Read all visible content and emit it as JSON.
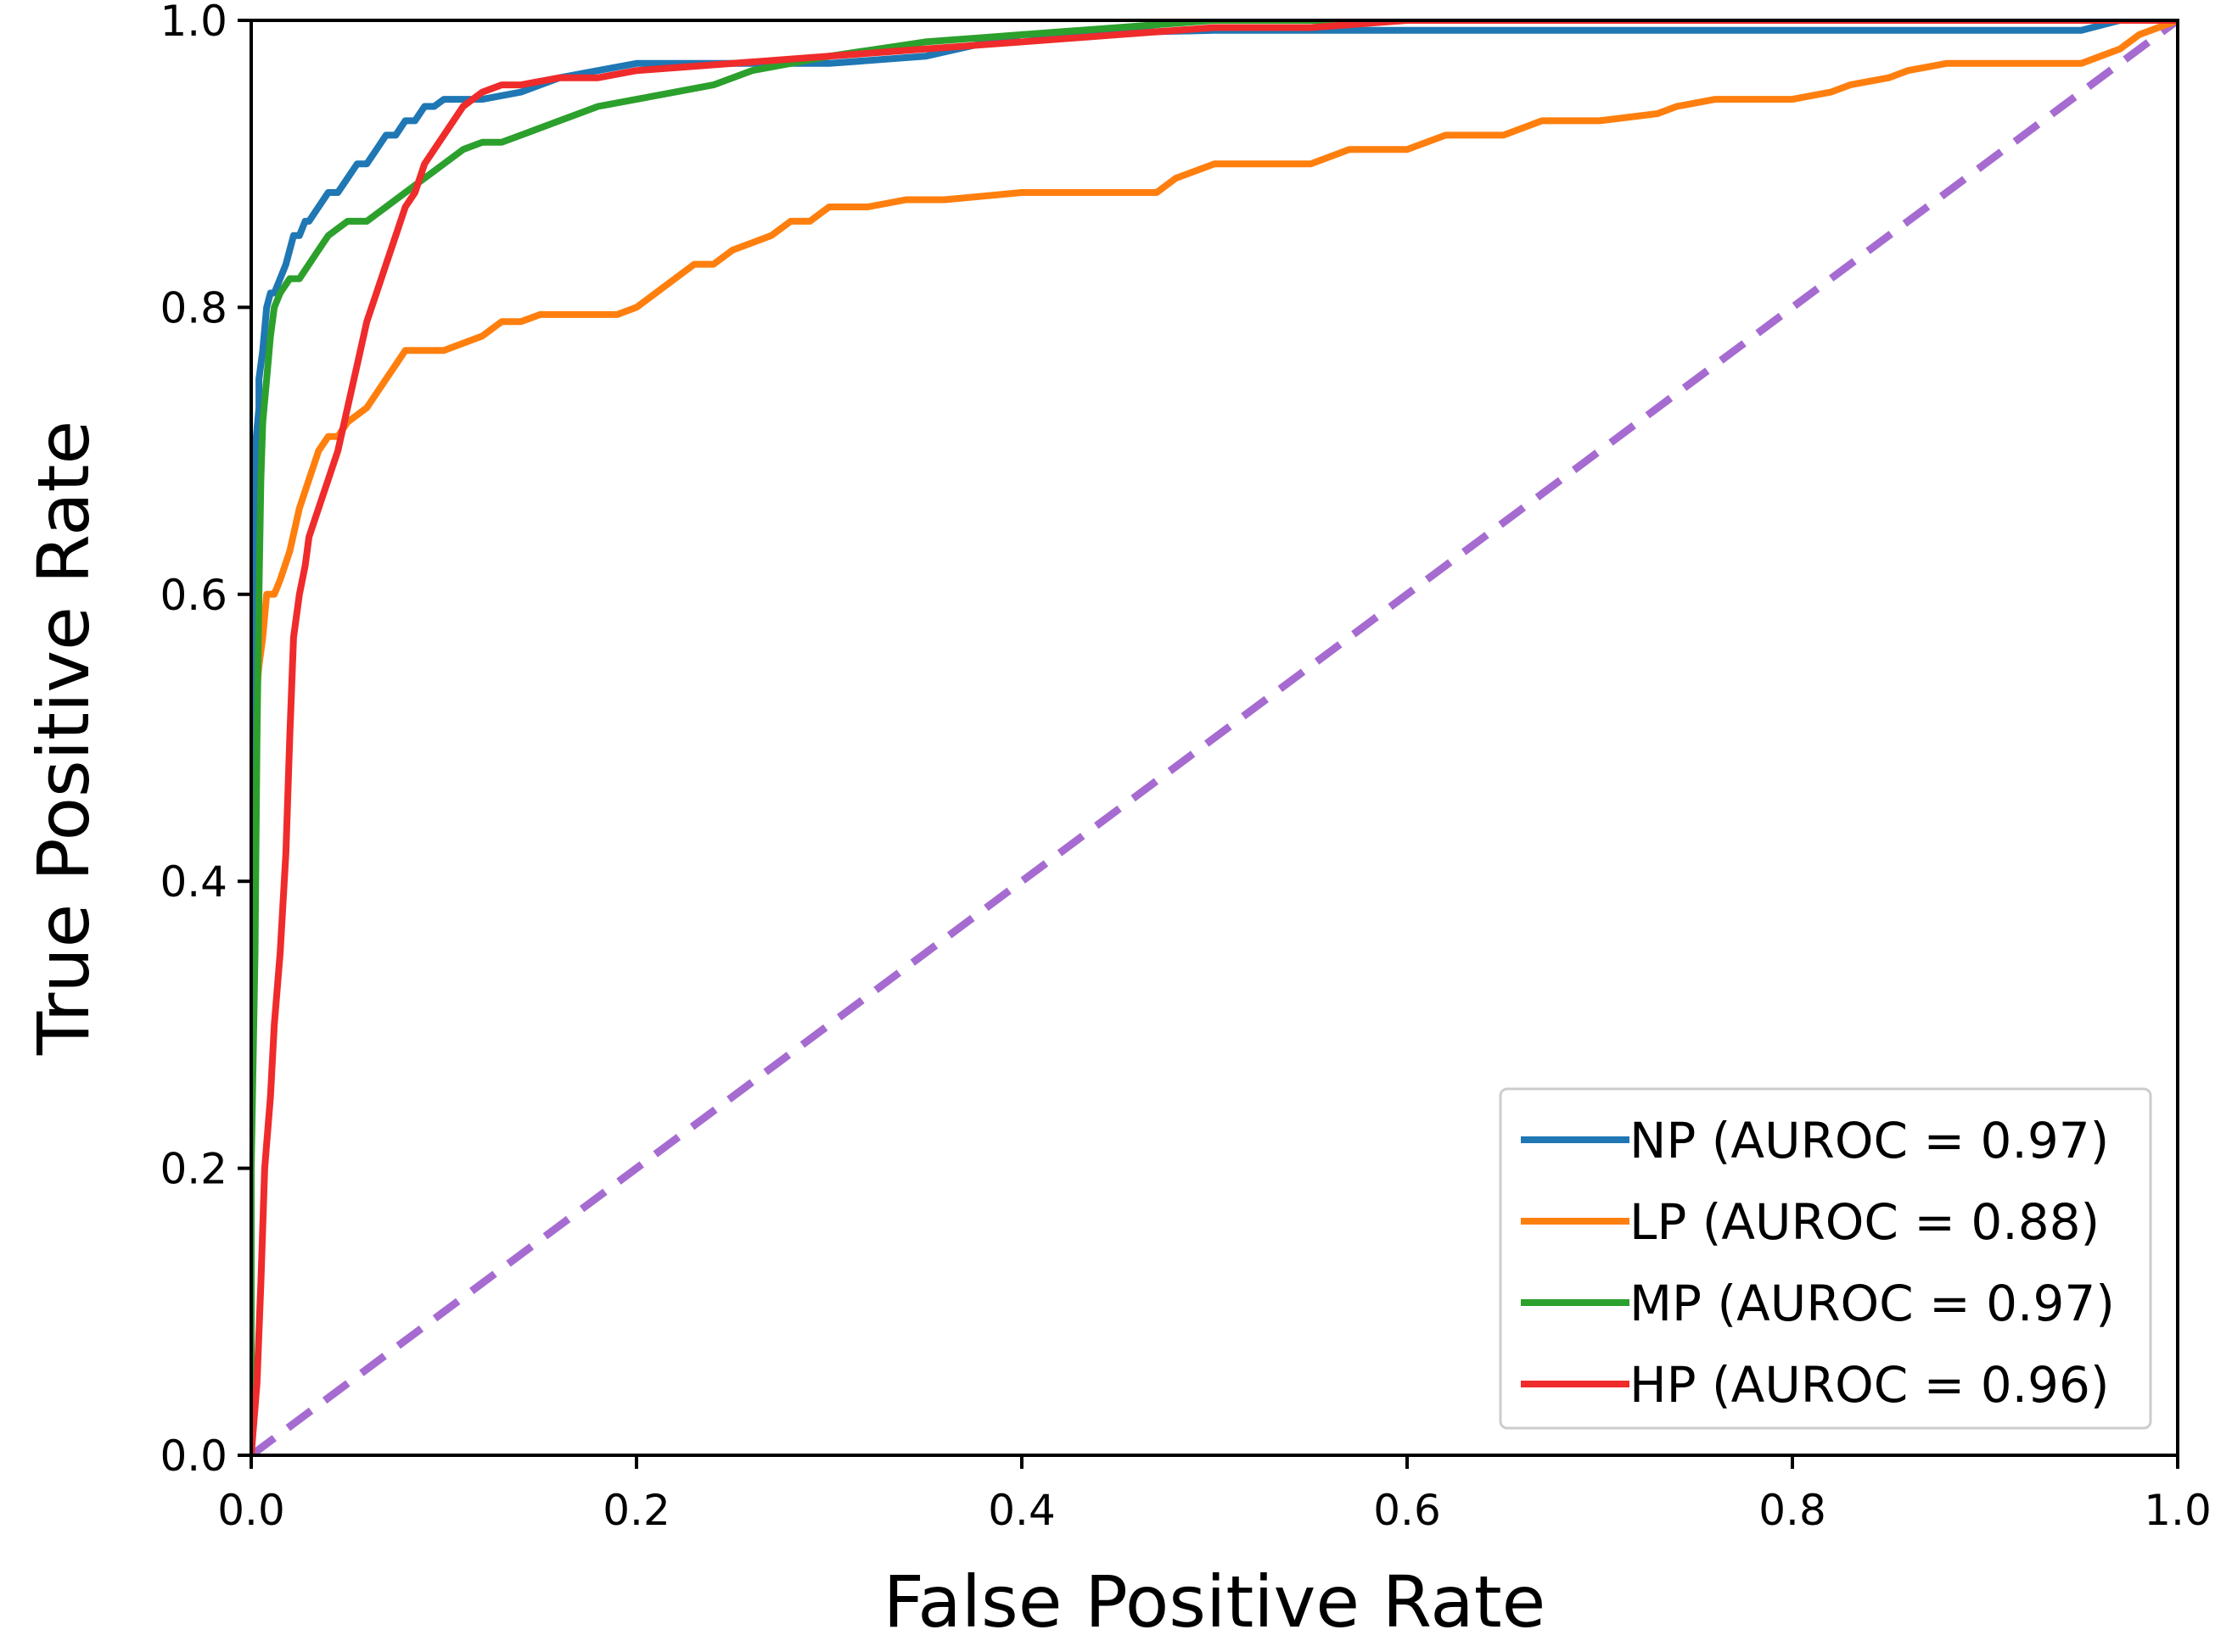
{
  "chart_data": {
    "type": "line",
    "title": "",
    "xlabel": "False Positive Rate",
    "ylabel": "True Positive Rate",
    "xlim": [
      0.0,
      1.0
    ],
    "ylim": [
      0.0,
      1.0
    ],
    "xticks": [
      "0.0",
      "0.2",
      "0.4",
      "0.6",
      "0.8",
      "1.0"
    ],
    "yticks": [
      "0.0",
      "0.2",
      "0.4",
      "0.6",
      "0.8",
      "1.0"
    ],
    "grid": false,
    "legend_position": "lower-right",
    "series": [
      {
        "name": "NP (AUROC = 0.97)",
        "color": "#1f77b4",
        "x": [
          0.0,
          0.0,
          0.002,
          0.002,
          0.004,
          0.004,
          0.006,
          0.008,
          0.01,
          0.012,
          0.015,
          0.018,
          0.02,
          0.022,
          0.025,
          0.028,
          0.03,
          0.035,
          0.04,
          0.045,
          0.05,
          0.055,
          0.06,
          0.065,
          0.07,
          0.075,
          0.08,
          0.085,
          0.09,
          0.095,
          0.1,
          0.11,
          0.12,
          0.14,
          0.16,
          0.18,
          0.2,
          0.25,
          0.3,
          0.35,
          0.4,
          0.5,
          0.6,
          0.7,
          0.8,
          0.9,
          0.95,
          0.97,
          1.0
        ],
        "y": [
          0.0,
          0.55,
          0.62,
          0.7,
          0.73,
          0.75,
          0.77,
          0.8,
          0.81,
          0.81,
          0.82,
          0.83,
          0.84,
          0.85,
          0.85,
          0.86,
          0.86,
          0.87,
          0.88,
          0.88,
          0.89,
          0.9,
          0.9,
          0.91,
          0.92,
          0.92,
          0.93,
          0.93,
          0.94,
          0.94,
          0.945,
          0.945,
          0.945,
          0.95,
          0.96,
          0.965,
          0.97,
          0.97,
          0.97,
          0.975,
          0.99,
          0.993,
          0.993,
          0.993,
          0.993,
          0.993,
          0.993,
          1.0,
          1.0
        ]
      },
      {
        "name": "LP (AUROC = 0.88)",
        "color": "#ff7f0e",
        "x": [
          0.0,
          0.002,
          0.004,
          0.006,
          0.008,
          0.01,
          0.012,
          0.015,
          0.02,
          0.025,
          0.03,
          0.035,
          0.04,
          0.045,
          0.05,
          0.06,
          0.07,
          0.075,
          0.08,
          0.09,
          0.1,
          0.12,
          0.13,
          0.14,
          0.15,
          0.17,
          0.19,
          0.2,
          0.21,
          0.22,
          0.23,
          0.24,
          0.25,
          0.27,
          0.28,
          0.29,
          0.3,
          0.32,
          0.34,
          0.36,
          0.4,
          0.45,
          0.47,
          0.48,
          0.5,
          0.52,
          0.55,
          0.57,
          0.6,
          0.62,
          0.65,
          0.67,
          0.7,
          0.73,
          0.74,
          0.76,
          0.8,
          0.82,
          0.83,
          0.85,
          0.86,
          0.88,
          0.9,
          0.95,
          0.97,
          0.98,
          1.0
        ],
        "y": [
          0.5,
          0.52,
          0.55,
          0.57,
          0.6,
          0.6,
          0.6,
          0.61,
          0.63,
          0.66,
          0.68,
          0.7,
          0.71,
          0.71,
          0.72,
          0.73,
          0.75,
          0.76,
          0.77,
          0.77,
          0.77,
          0.78,
          0.79,
          0.79,
          0.795,
          0.795,
          0.795,
          0.8,
          0.81,
          0.82,
          0.83,
          0.83,
          0.84,
          0.85,
          0.86,
          0.86,
          0.87,
          0.87,
          0.875,
          0.875,
          0.88,
          0.88,
          0.88,
          0.89,
          0.9,
          0.9,
          0.9,
          0.91,
          0.91,
          0.92,
          0.92,
          0.93,
          0.93,
          0.935,
          0.94,
          0.945,
          0.945,
          0.95,
          0.955,
          0.96,
          0.965,
          0.97,
          0.97,
          0.97,
          0.98,
          0.99,
          1.0
        ]
      },
      {
        "name": "MP (AUROC = 0.97)",
        "color": "#2ca02c",
        "x": [
          0.0,
          0.0,
          0.002,
          0.003,
          0.004,
          0.005,
          0.006,
          0.008,
          0.01,
          0.012,
          0.015,
          0.02,
          0.025,
          0.03,
          0.035,
          0.04,
          0.05,
          0.06,
          0.07,
          0.08,
          0.09,
          0.1,
          0.11,
          0.12,
          0.13,
          0.14,
          0.15,
          0.16,
          0.17,
          0.18,
          0.2,
          0.22,
          0.24,
          0.26,
          0.28,
          0.3,
          0.35,
          0.4,
          0.45,
          0.5,
          0.6,
          0.7,
          0.8,
          0.9,
          0.95,
          1.0
        ],
        "y": [
          0.0,
          0.2,
          0.35,
          0.5,
          0.6,
          0.68,
          0.72,
          0.75,
          0.78,
          0.8,
          0.81,
          0.82,
          0.82,
          0.83,
          0.84,
          0.85,
          0.86,
          0.86,
          0.87,
          0.88,
          0.89,
          0.9,
          0.91,
          0.915,
          0.915,
          0.92,
          0.925,
          0.93,
          0.935,
          0.94,
          0.945,
          0.95,
          0.955,
          0.965,
          0.97,
          0.975,
          0.985,
          0.99,
          0.995,
          1.0,
          1.0,
          1.0,
          1.0,
          1.0,
          1.0,
          1.0
        ]
      },
      {
        "name": "HP (AUROC = 0.96)",
        "color": "#ef2b2b",
        "x": [
          0.0,
          0.003,
          0.005,
          0.007,
          0.01,
          0.012,
          0.015,
          0.018,
          0.02,
          0.022,
          0.025,
          0.028,
          0.03,
          0.035,
          0.04,
          0.045,
          0.05,
          0.055,
          0.06,
          0.065,
          0.07,
          0.075,
          0.08,
          0.085,
          0.09,
          0.1,
          0.11,
          0.12,
          0.13,
          0.14,
          0.16,
          0.18,
          0.2,
          0.25,
          0.3,
          0.35,
          0.4,
          0.45,
          0.5,
          0.55,
          0.6,
          0.7,
          0.8,
          0.9,
          0.95,
          1.0
        ],
        "y": [
          0.0,
          0.05,
          0.12,
          0.2,
          0.25,
          0.3,
          0.35,
          0.42,
          0.5,
          0.57,
          0.6,
          0.62,
          0.64,
          0.66,
          0.68,
          0.7,
          0.73,
          0.76,
          0.79,
          0.81,
          0.83,
          0.85,
          0.87,
          0.88,
          0.9,
          0.92,
          0.94,
          0.95,
          0.955,
          0.955,
          0.96,
          0.96,
          0.965,
          0.97,
          0.975,
          0.98,
          0.985,
          0.99,
          0.995,
          0.995,
          1.0,
          1.0,
          1.0,
          1.0,
          1.0,
          1.0
        ]
      },
      {
        "name": "Chance",
        "color": "#a66bd0",
        "dashed": true,
        "in_legend": false,
        "x": [
          0.0,
          1.0
        ],
        "y": [
          0.0,
          1.0
        ]
      }
    ]
  }
}
